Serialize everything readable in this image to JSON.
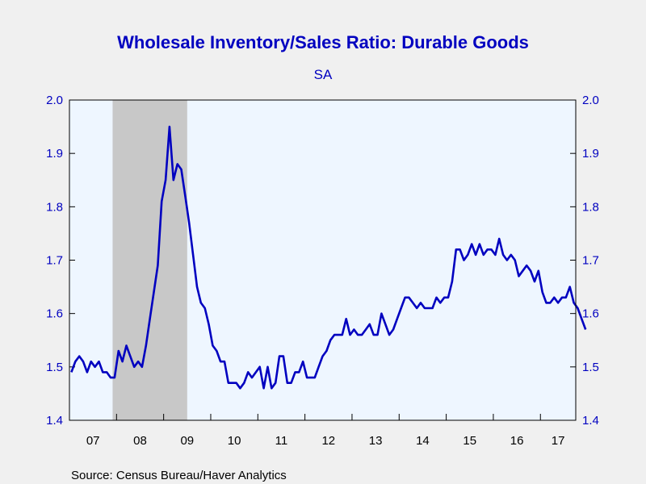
{
  "chart_data": {
    "type": "line",
    "title": "Wholesale Inventory/Sales Ratio: Durable Goods",
    "subtitle": "SA",
    "source": "Source:  Census Bureau/Haver Analytics",
    "ylim": [
      1.4,
      2.0
    ],
    "yticks": [
      "2.0",
      "1.9",
      "1.8",
      "1.7",
      "1.6",
      "1.5",
      "1.4"
    ],
    "xlabels": [
      "07",
      "08",
      "09",
      "10",
      "11",
      "12",
      "13",
      "14",
      "15",
      "16",
      "17"
    ],
    "x_range": [
      "2007-01",
      "2017-09"
    ],
    "recession": {
      "start": "2007-12",
      "end": "2009-06"
    },
    "grid": false,
    "series": [
      {
        "color": "#0000c0",
        "values": [
          1.49,
          1.51,
          1.52,
          1.51,
          1.49,
          1.51,
          1.5,
          1.51,
          1.49,
          1.49,
          1.48,
          1.48,
          1.53,
          1.51,
          1.54,
          1.52,
          1.5,
          1.51,
          1.5,
          1.54,
          1.59,
          1.64,
          1.69,
          1.81,
          1.85,
          1.95,
          1.85,
          1.88,
          1.87,
          1.82,
          1.77,
          1.71,
          1.65,
          1.62,
          1.61,
          1.58,
          1.54,
          1.53,
          1.51,
          1.51,
          1.47,
          1.47,
          1.47,
          1.46,
          1.47,
          1.49,
          1.48,
          1.49,
          1.5,
          1.46,
          1.5,
          1.46,
          1.47,
          1.52,
          1.52,
          1.47,
          1.47,
          1.49,
          1.49,
          1.51,
          1.48,
          1.48,
          1.48,
          1.5,
          1.52,
          1.53,
          1.55,
          1.56,
          1.56,
          1.56,
          1.59,
          1.56,
          1.57,
          1.56,
          1.56,
          1.57,
          1.58,
          1.56,
          1.56,
          1.6,
          1.58,
          1.56,
          1.57,
          1.59,
          1.61,
          1.63,
          1.63,
          1.62,
          1.61,
          1.62,
          1.61,
          1.61,
          1.61,
          1.63,
          1.62,
          1.63,
          1.63,
          1.66,
          1.72,
          1.72,
          1.7,
          1.71,
          1.73,
          1.71,
          1.73,
          1.71,
          1.72,
          1.72,
          1.71,
          1.74,
          1.71,
          1.7,
          1.71,
          1.7,
          1.67,
          1.68,
          1.69,
          1.68,
          1.66,
          1.68,
          1.64,
          1.62,
          1.62,
          1.63,
          1.62,
          1.63,
          1.63,
          1.65,
          1.62,
          1.61,
          1.59,
          1.57
        ]
      }
    ]
  }
}
